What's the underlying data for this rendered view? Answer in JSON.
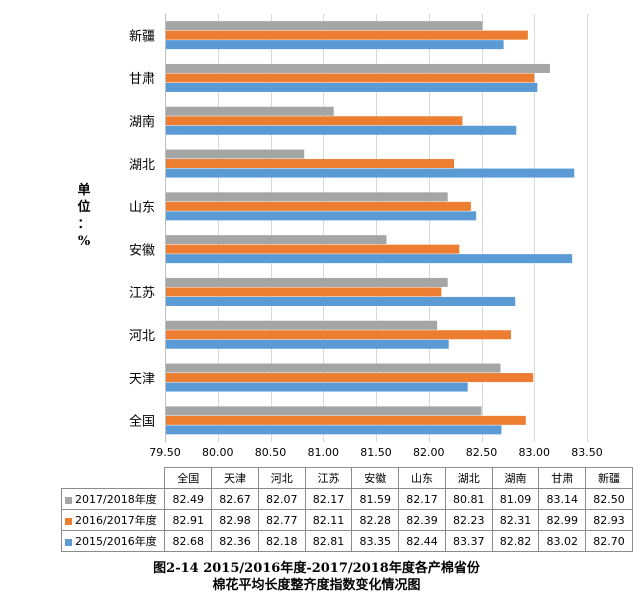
{
  "unit_label": [
    "单",
    "位",
    "：",
    "%"
  ],
  "caption": {
    "line1": "图2-14  2015/2016年度-2017/2018年度各产棉省份",
    "line2": "棉花平均长度整齐度指数变化情况图"
  },
  "chart_data": {
    "type": "bar",
    "orientation": "horizontal",
    "categories": [
      "全国",
      "天津",
      "河北",
      "江苏",
      "安徽",
      "山东",
      "湖北",
      "湖南",
      "甘肃",
      "新疆"
    ],
    "series": [
      {
        "name": "2017/2018年度",
        "color": "#a5a5a5",
        "values": [
          82.49,
          82.67,
          82.07,
          82.17,
          81.59,
          82.17,
          80.81,
          81.09,
          83.14,
          82.5
        ]
      },
      {
        "name": "2016/2017年度",
        "color": "#ed7d31",
        "values": [
          82.91,
          82.98,
          82.77,
          82.11,
          82.28,
          82.39,
          82.23,
          82.31,
          82.99,
          82.93
        ]
      },
      {
        "name": "2015/2016年度",
        "color": "#5b9bd5",
        "values": [
          82.68,
          82.36,
          82.18,
          82.81,
          83.35,
          82.44,
          83.37,
          82.82,
          83.02,
          82.7
        ]
      }
    ],
    "xlim": [
      79.5,
      83.5
    ],
    "xticks": [
      "79.50",
      "80.00",
      "80.50",
      "81.00",
      "81.50",
      "82.00",
      "82.50",
      "83.00",
      "83.50"
    ],
    "grid": true,
    "legend": "data table below chart"
  }
}
